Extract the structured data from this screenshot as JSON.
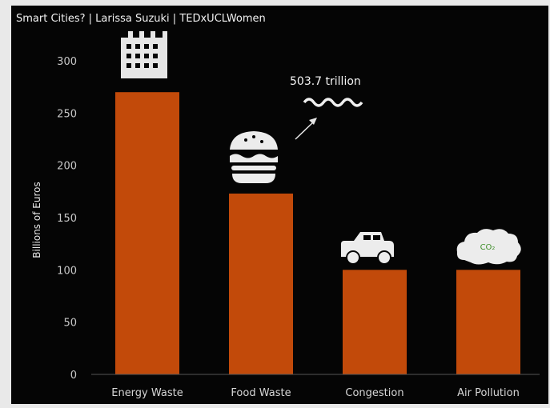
{
  "video": {
    "title": "Smart Cities? | Larissa Suzuki | TEDxUCLWomen"
  },
  "colors": {
    "bar": "#c24a0a",
    "background": "#050505",
    "icon": "#ececec",
    "co2_text": "#3f8f2a"
  },
  "icons": [
    "building-icon",
    "burger-icon",
    "water-icon",
    "arrow-icon",
    "car-icon",
    "cloud-co2-icon"
  ],
  "chart_data": {
    "type": "bar",
    "categories": [
      "Energy Waste",
      "Food Waste",
      "Congestion",
      "Air Pollution"
    ],
    "values": [
      270,
      173,
      100,
      100
    ],
    "ylabel": "Billions of Euros",
    "xlabel": "",
    "ylim": [
      0,
      300
    ],
    "yticks": [
      0,
      50,
      100,
      150,
      200,
      250,
      300
    ],
    "grid": false,
    "annotations": {
      "food_waste_note": "503.7 trillion",
      "co2_label": "CO₂"
    }
  }
}
